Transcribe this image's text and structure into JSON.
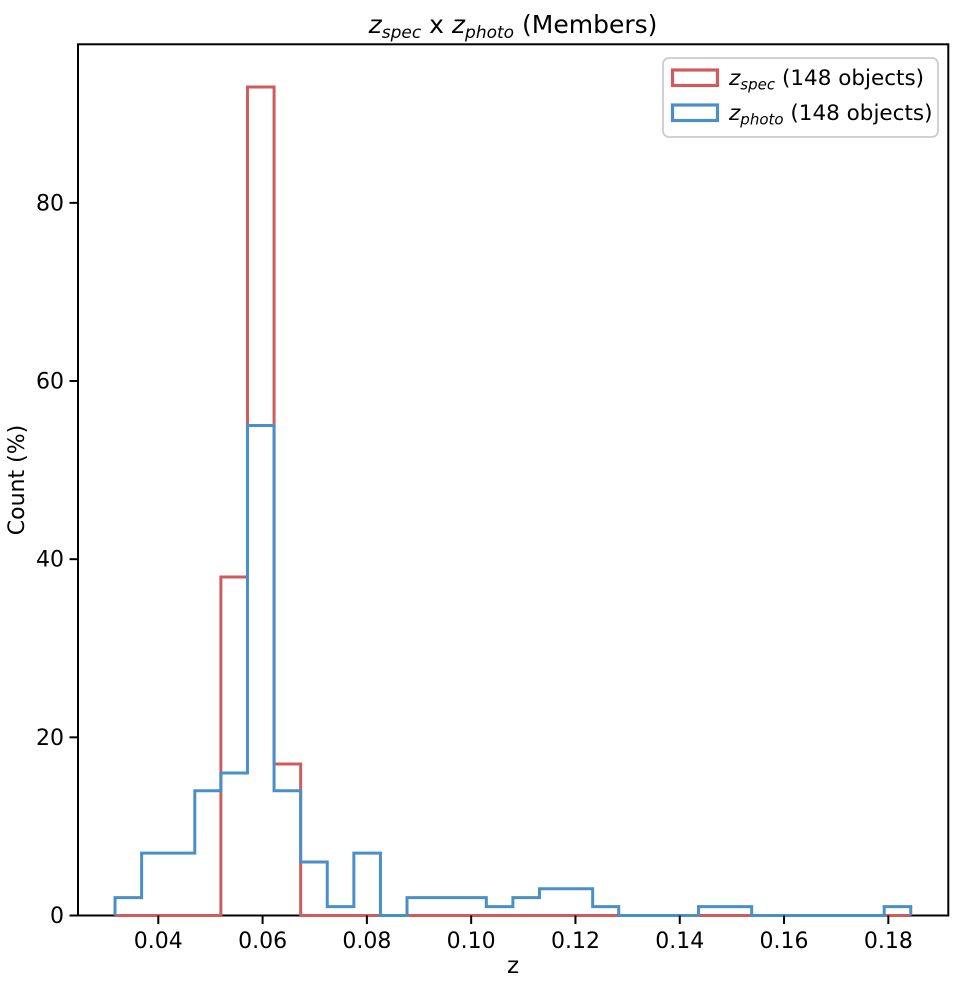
{
  "title": {
    "z1": "z",
    "sub1": "spec",
    "mid": " x ",
    "z2": "z",
    "sub2": "photo",
    "tail": " (Members)"
  },
  "axes": {
    "xlabel": "z",
    "ylabel": "Count (%)",
    "x_ticks": [
      {
        "z": 0.04,
        "label": "0.04"
      },
      {
        "z": 0.06,
        "label": "0.06"
      },
      {
        "z": 0.08,
        "label": "0.08"
      },
      {
        "z": 0.1,
        "label": "0.10"
      },
      {
        "z": 0.12,
        "label": "0.12"
      },
      {
        "z": 0.14,
        "label": "0.14"
      },
      {
        "z": 0.16,
        "label": "0.16"
      },
      {
        "z": 0.18,
        "label": "0.18"
      }
    ],
    "y_ticks": [
      {
        "v": 0,
        "label": "0"
      },
      {
        "v": 20,
        "label": "20"
      },
      {
        "v": 40,
        "label": "40"
      },
      {
        "v": 60,
        "label": "60"
      },
      {
        "v": 80,
        "label": "80"
      }
    ]
  },
  "legend": {
    "entries": [
      {
        "z": "z",
        "sub": "spec",
        "tail": " (148 objects)",
        "color": "#cd5c5f"
      },
      {
        "z": "z",
        "sub": "photo",
        "tail": " (148 objects)",
        "color": "#4a90c7"
      }
    ]
  },
  "chart_data": {
    "type": "histogram-step",
    "title": "z_spec x z_photo (Members)",
    "xlabel": "z",
    "ylabel": "Count (%)",
    "xlim": [
      0.0246,
      0.1915
    ],
    "ylim": [
      0,
      97.8
    ],
    "grid": false,
    "legend_position": "upper right",
    "n_objects": 148,
    "bin_edges": [
      0.0317,
      0.0368,
      0.0419,
      0.047,
      0.052,
      0.0571,
      0.0622,
      0.0673,
      0.0724,
      0.0775,
      0.0826,
      0.0877,
      0.0927,
      0.0978,
      0.1029,
      0.108,
      0.1131,
      0.1182,
      0.1233,
      0.1283,
      0.1334,
      0.1385,
      0.1436,
      0.1487,
      0.1538,
      0.1589,
      0.164,
      0.169,
      0.1741,
      0.1792,
      0.1843
    ],
    "series": [
      {
        "key": "zspec",
        "name": "z_spec (148 objects)",
        "color": "#cd5c5f",
        "values": [
          0,
          0,
          0,
          0,
          38,
          93,
          17,
          0,
          0,
          0,
          0,
          0,
          0,
          0,
          0,
          0,
          0,
          0,
          0,
          0,
          0,
          0,
          0,
          0,
          0,
          0,
          0,
          0,
          0,
          0
        ]
      },
      {
        "key": "zphoto",
        "name": "z_photo (148 objects)",
        "color": "#4a90c7",
        "values": [
          2,
          7,
          7,
          14,
          16,
          55,
          14,
          6,
          1,
          7,
          0,
          2,
          2,
          2,
          1,
          2,
          3,
          3,
          1,
          0,
          0,
          0,
          1,
          1,
          0,
          0,
          0,
          0,
          0,
          1
        ]
      }
    ]
  }
}
